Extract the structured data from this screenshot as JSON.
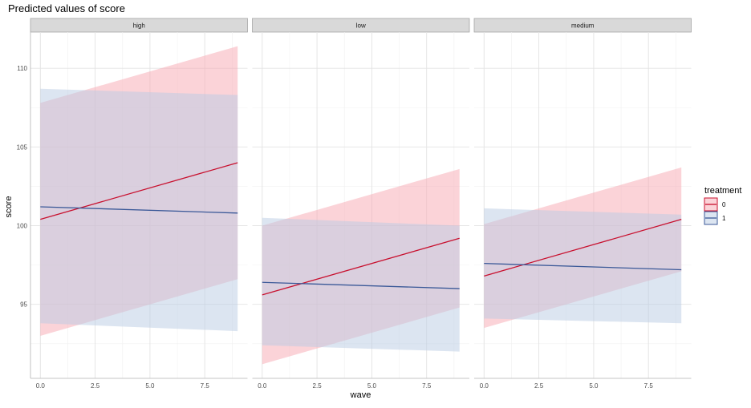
{
  "chart_data": {
    "type": "line",
    "title": "Predicted values of score",
    "xlabel": "wave",
    "ylabel": "score",
    "xlim": [
      -0.45,
      9.45
    ],
    "ylim": [
      90.3,
      112.3
    ],
    "x_ticks": [
      0.0,
      2.5,
      5.0,
      7.5
    ],
    "x_tick_labels": [
      "0.0",
      "2.5",
      "5.0",
      "7.5"
    ],
    "y_ticks": [
      95,
      100,
      105,
      110
    ],
    "y_tick_labels": [
      "95",
      "100",
      "105",
      "110"
    ],
    "grid": true,
    "legend": {
      "title": "treatment",
      "position": "right",
      "entries": [
        {
          "label": "0",
          "color": "#c8102e",
          "fill": "#f7a8b2"
        },
        {
          "label": "1",
          "color": "#3b5998",
          "fill": "#b9cbe4"
        }
      ]
    },
    "panels": [
      {
        "label": "high",
        "series": [
          {
            "name": "0",
            "x": [
              0,
              9
            ],
            "y": [
              100.4,
              104.0
            ],
            "lower": [
              93.0,
              96.6
            ],
            "upper": [
              107.8,
              111.4
            ]
          },
          {
            "name": "1",
            "x": [
              0,
              9
            ],
            "y": [
              101.2,
              100.8
            ],
            "lower": [
              93.8,
              93.3
            ],
            "upper": [
              108.7,
              108.3
            ]
          }
        ]
      },
      {
        "label": "low",
        "series": [
          {
            "name": "0",
            "x": [
              0,
              9
            ],
            "y": [
              95.6,
              99.2
            ],
            "lower": [
              91.2,
              94.8
            ],
            "upper": [
              100.0,
              103.6
            ]
          },
          {
            "name": "1",
            "x": [
              0,
              9
            ],
            "y": [
              96.4,
              96.0
            ],
            "lower": [
              92.4,
              92.0
            ],
            "upper": [
              100.5,
              100.0
            ]
          }
        ]
      },
      {
        "label": "medium",
        "series": [
          {
            "name": "0",
            "x": [
              0,
              9
            ],
            "y": [
              96.8,
              100.4
            ],
            "lower": [
              93.5,
              97.1
            ],
            "upper": [
              100.1,
              103.7
            ]
          },
          {
            "name": "1",
            "x": [
              0,
              9
            ],
            "y": [
              97.6,
              97.2
            ],
            "lower": [
              94.1,
              93.8
            ],
            "upper": [
              101.1,
              100.7
            ]
          }
        ]
      }
    ]
  }
}
